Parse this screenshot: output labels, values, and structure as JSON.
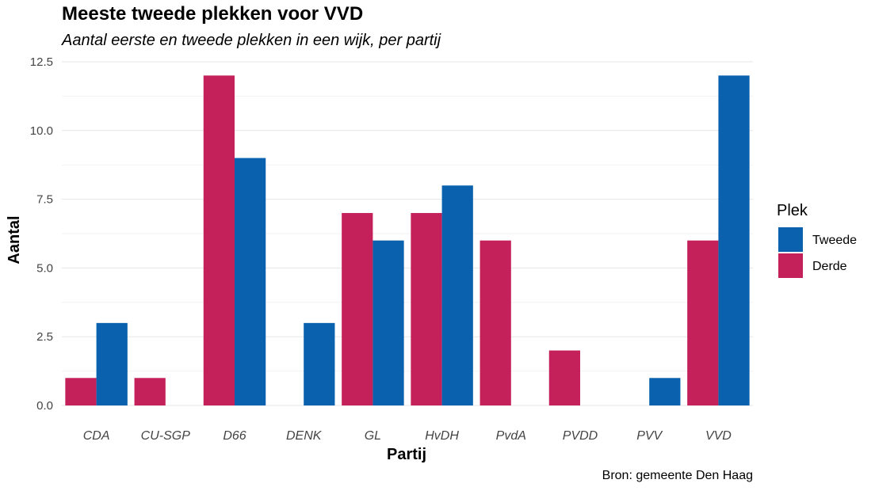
{
  "chart_data": {
    "type": "bar",
    "title": "Meeste tweede plekken voor VVD",
    "subtitle": "Aantal eerste en tweede plekken in een wijk, per partij",
    "xlabel": "Partij",
    "ylabel": "Aantal",
    "caption": "Bron: gemeente Den Haag",
    "legend_title": "Plek",
    "legend_position": "right",
    "grid": true,
    "ylim": [
      0,
      12.5
    ],
    "yticks": [
      0.0,
      2.5,
      5.0,
      7.5,
      10.0,
      12.5
    ],
    "ytick_labels": [
      "0.0",
      "2.5",
      "5.0",
      "7.5",
      "10.0",
      "12.5"
    ],
    "categories": [
      "CDA",
      "CU-SGP",
      "D66",
      "DENK",
      "GL",
      "HvDH",
      "PvdA",
      "PVDD",
      "PVV",
      "VVD"
    ],
    "series": [
      {
        "name": "Derde",
        "color": "#C4215A",
        "values": [
          1,
          1,
          12,
          0,
          7,
          7,
          6,
          2,
          0,
          6
        ]
      },
      {
        "name": "Tweede",
        "color": "#0A62AE",
        "values": [
          3,
          0,
          9,
          3,
          6,
          8,
          0,
          0,
          1,
          12
        ]
      }
    ],
    "legend_order": [
      "Tweede",
      "Derde"
    ]
  }
}
